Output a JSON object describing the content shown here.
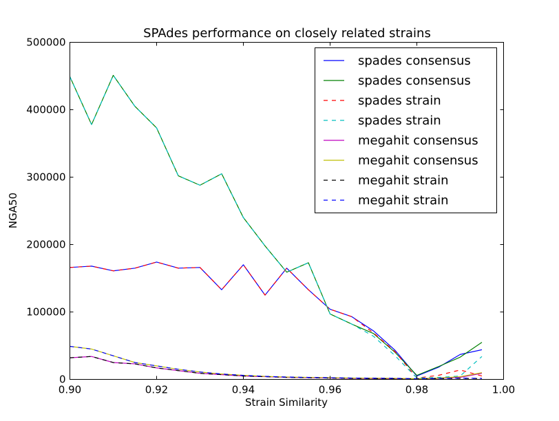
{
  "chart_data": {
    "type": "line",
    "title": "SPAdes performance on closely related strains",
    "xlabel": "Strain Similarity",
    "ylabel": "NGA50",
    "xlim": [
      0.9,
      1.0
    ],
    "ylim": [
      0,
      500000
    ],
    "xticks": [
      0.9,
      0.92,
      0.94,
      0.96,
      0.98,
      1.0
    ],
    "xtick_labels": [
      "0.90",
      "0.92",
      "0.94",
      "0.96",
      "0.98",
      "1.00"
    ],
    "yticks": [
      0,
      100000,
      200000,
      300000,
      400000,
      500000
    ],
    "ytick_labels": [
      "0",
      "100000",
      "200000",
      "300000",
      "400000",
      "500000"
    ],
    "grid": false,
    "legend_position": "top-right",
    "x": [
      0.9,
      0.905,
      0.91,
      0.915,
      0.92,
      0.925,
      0.93,
      0.935,
      0.94,
      0.945,
      0.95,
      0.955,
      0.96,
      0.965,
      0.97,
      0.975,
      0.98,
      0.985,
      0.99,
      0.995
    ],
    "series": [
      {
        "name": "spades consensus",
        "color": "#0000ff",
        "dash": "solid",
        "values": [
          166000,
          168000,
          161000,
          165000,
          174000,
          165000,
          166000,
          133000,
          170000,
          125000,
          165000,
          133000,
          104000,
          93000,
          72000,
          43000,
          5000,
          18000,
          37000,
          44000
        ]
      },
      {
        "name": "spades consensus",
        "color": "#008000",
        "dash": "solid",
        "values": [
          449000,
          378000,
          451000,
          405000,
          373000,
          302000,
          288000,
          305000,
          240000,
          198000,
          159000,
          173000,
          97000,
          82000,
          68000,
          40000,
          6000,
          19000,
          33000,
          55000
        ]
      },
      {
        "name": "spades strain",
        "color": "#ff0000",
        "dash": "dashed",
        "values": [
          166000,
          168000,
          161000,
          165000,
          174000,
          165000,
          166000,
          133000,
          170000,
          125000,
          165000,
          133000,
          104000,
          93000,
          69000,
          41000,
          2000,
          6000,
          14000,
          5000
        ]
      },
      {
        "name": "spades strain",
        "color": "#00bfbf",
        "dash": "dashed",
        "values": [
          449000,
          378000,
          451000,
          405000,
          373000,
          302000,
          288000,
          305000,
          240000,
          198000,
          159000,
          173000,
          97000,
          82000,
          64000,
          35000,
          2000,
          3000,
          5000,
          34000
        ]
      },
      {
        "name": "megahit consensus",
        "color": "#bf00bf",
        "dash": "solid",
        "values": [
          32000,
          34000,
          25000,
          23000,
          17000,
          13000,
          9000,
          7000,
          5000,
          4000,
          3000,
          2500,
          2000,
          1500,
          1200,
          1000,
          800,
          1500,
          3000,
          9000
        ]
      },
      {
        "name": "megahit consensus",
        "color": "#bfbf00",
        "dash": "solid",
        "values": [
          49000,
          45000,
          35000,
          25000,
          20000,
          15000,
          11000,
          8000,
          6000,
          4500,
          3500,
          3000,
          2500,
          2000,
          1800,
          1600,
          1000,
          2000,
          4000,
          10000
        ]
      },
      {
        "name": "megahit strain",
        "color": "#000000",
        "dash": "dashed",
        "values": [
          32000,
          34000,
          25000,
          23000,
          17000,
          13000,
          9000,
          7000,
          5000,
          4000,
          3000,
          2500,
          2000,
          1500,
          1200,
          1000,
          800,
          1200,
          1500,
          1200
        ]
      },
      {
        "name": "megahit strain",
        "color": "#0000ff",
        "dash": "dashed",
        "values": [
          49000,
          45000,
          35000,
          25000,
          20000,
          15000,
          11000,
          8000,
          6000,
          4500,
          3500,
          3000,
          2500,
          2000,
          1800,
          1600,
          1000,
          1500,
          2000,
          1500
        ]
      }
    ]
  }
}
